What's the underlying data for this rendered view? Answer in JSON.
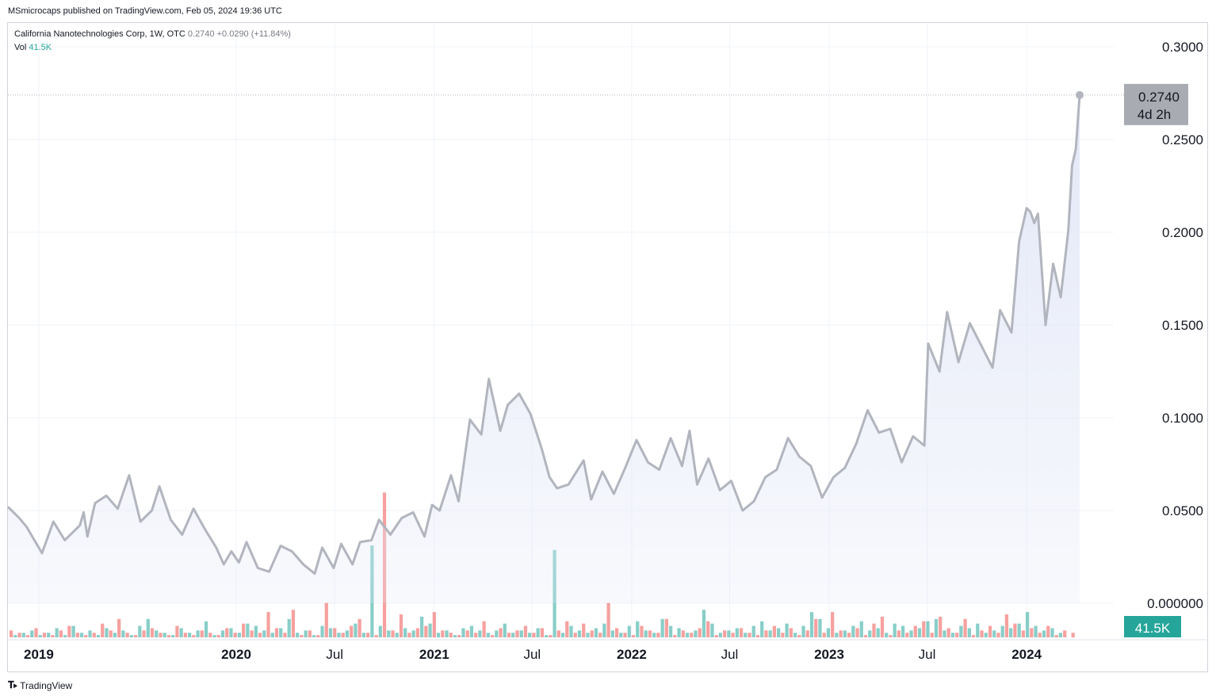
{
  "header": {
    "published": "MSmicrocaps published on TradingView.com, Feb 05, 2024 19:36 UTC"
  },
  "legend": {
    "symbol": "California Nanotechnologies Corp, 1W, OTC",
    "last": "0.2740",
    "change": "+0.0290 (+11.84%)",
    "vol_label": "Vol",
    "vol_value": "41.5K"
  },
  "price_badge": {
    "price": "0.2740",
    "countdown": "4d 2h"
  },
  "volume_badge": "41.5K",
  "footer": {
    "brand": "TradingView",
    "logo": "tradingview-logo"
  },
  "colors": {
    "line": "#b2b5be",
    "fill": "#e3e8f7",
    "vol_up": "#26a69a",
    "vol_down": "#ef5350",
    "badge_gray": "#a9abb3",
    "badge_teal": "#26a69a"
  },
  "chart_data": {
    "type": "area",
    "yaxis_ticks": [
      "0.3000",
      "0.2500",
      "0.2000",
      "0.1500",
      "0.1000",
      "0.0500",
      "0.000000"
    ],
    "x_ticks": [
      "2019",
      "2020",
      "Jul",
      "2021",
      "Jul",
      "2022",
      "Jul",
      "2023",
      "Jul",
      "2024"
    ],
    "ylim": [
      0,
      0.3
    ],
    "grid": true,
    "series": [
      {
        "points": [
          [
            "2018-11-05",
            0.052
          ],
          [
            "2018-11-26",
            0.046
          ],
          [
            "2018-12-10",
            0.041
          ],
          [
            "2019-01-07",
            0.027
          ],
          [
            "2019-01-28",
            0.044
          ],
          [
            "2019-02-18",
            0.034
          ],
          [
            "2019-03-18",
            0.042
          ],
          [
            "2019-03-25",
            0.049
          ],
          [
            "2019-04-01",
            0.036
          ],
          [
            "2019-04-15",
            0.054
          ],
          [
            "2019-05-06",
            0.058
          ],
          [
            "2019-05-27",
            0.051
          ],
          [
            "2019-06-17",
            0.069
          ],
          [
            "2019-07-08",
            0.044
          ],
          [
            "2019-07-29",
            0.05
          ],
          [
            "2019-08-12",
            0.063
          ],
          [
            "2019-09-02",
            0.045
          ],
          [
            "2019-09-23",
            0.037
          ],
          [
            "2019-10-14",
            0.051
          ],
          [
            "2019-11-04",
            0.04
          ],
          [
            "2019-11-25",
            0.03
          ],
          [
            "2019-12-09",
            0.021
          ],
          [
            "2019-12-23",
            0.028
          ],
          [
            "2020-01-06",
            0.022
          ],
          [
            "2020-01-20",
            0.033
          ],
          [
            "2020-02-10",
            0.019
          ],
          [
            "2020-03-02",
            0.017
          ],
          [
            "2020-03-23",
            0.031
          ],
          [
            "2020-04-13",
            0.028
          ],
          [
            "2020-05-04",
            0.021
          ],
          [
            "2020-05-25",
            0.016
          ],
          [
            "2020-06-08",
            0.03
          ],
          [
            "2020-06-29",
            0.019
          ],
          [
            "2020-07-13",
            0.032
          ],
          [
            "2020-08-03",
            0.021
          ],
          [
            "2020-08-17",
            0.033
          ],
          [
            "2020-09-07",
            0.034
          ],
          [
            "2020-09-21",
            0.045
          ],
          [
            "2020-10-12",
            0.037
          ],
          [
            "2020-11-02",
            0.046
          ],
          [
            "2020-11-23",
            0.049
          ],
          [
            "2020-12-14",
            0.036
          ],
          [
            "2020-12-28",
            0.053
          ],
          [
            "2021-01-11",
            0.05
          ],
          [
            "2021-02-01",
            0.069
          ],
          [
            "2021-02-15",
            0.055
          ],
          [
            "2021-03-08",
            0.099
          ],
          [
            "2021-03-29",
            0.091
          ],
          [
            "2021-04-12",
            0.121
          ],
          [
            "2021-05-03",
            0.093
          ],
          [
            "2021-05-17",
            0.107
          ],
          [
            "2021-06-07",
            0.113
          ],
          [
            "2021-06-28",
            0.102
          ],
          [
            "2021-07-19",
            0.083
          ],
          [
            "2021-08-02",
            0.068
          ],
          [
            "2021-08-16",
            0.062
          ],
          [
            "2021-09-06",
            0.064
          ],
          [
            "2021-10-04",
            0.077
          ],
          [
            "2021-10-18",
            0.056
          ],
          [
            "2021-11-08",
            0.071
          ],
          [
            "2021-11-29",
            0.059
          ],
          [
            "2021-12-20",
            0.073
          ],
          [
            "2022-01-10",
            0.088
          ],
          [
            "2022-01-31",
            0.076
          ],
          [
            "2022-02-21",
            0.072
          ],
          [
            "2022-03-14",
            0.089
          ],
          [
            "2022-04-04",
            0.074
          ],
          [
            "2022-04-18",
            0.093
          ],
          [
            "2022-05-02",
            0.064
          ],
          [
            "2022-05-23",
            0.078
          ],
          [
            "2022-06-13",
            0.061
          ],
          [
            "2022-07-04",
            0.066
          ],
          [
            "2022-07-25",
            0.05
          ],
          [
            "2022-08-15",
            0.055
          ],
          [
            "2022-09-05",
            0.068
          ],
          [
            "2022-09-26",
            0.072
          ],
          [
            "2022-10-17",
            0.089
          ],
          [
            "2022-11-07",
            0.079
          ],
          [
            "2022-11-28",
            0.074
          ],
          [
            "2022-12-19",
            0.057
          ],
          [
            "2023-01-09",
            0.068
          ],
          [
            "2023-01-30",
            0.073
          ],
          [
            "2023-02-20",
            0.086
          ],
          [
            "2023-03-13",
            0.104
          ],
          [
            "2023-04-03",
            0.092
          ],
          [
            "2023-04-24",
            0.094
          ],
          [
            "2023-05-15",
            0.076
          ],
          [
            "2023-06-05",
            0.09
          ],
          [
            "2023-06-26",
            0.085
          ],
          [
            "2023-07-03",
            0.14
          ],
          [
            "2023-07-24",
            0.125
          ],
          [
            "2023-08-07",
            0.157
          ],
          [
            "2023-08-28",
            0.13
          ],
          [
            "2023-09-18",
            0.151
          ],
          [
            "2023-10-09",
            0.139
          ],
          [
            "2023-10-30",
            0.127
          ],
          [
            "2023-11-13",
            0.158
          ],
          [
            "2023-12-04",
            0.146
          ],
          [
            "2023-12-18",
            0.195
          ],
          [
            "2024-01-01",
            0.213
          ],
          [
            "2024-01-08",
            0.211
          ],
          [
            "2024-01-15",
            0.205
          ],
          [
            "2024-01-22",
            0.21
          ],
          [
            "2024-02-05",
            0.15
          ],
          [
            "2024-02-19",
            0.183
          ],
          [
            "2024-03-04",
            0.165
          ],
          [
            "2024-03-18",
            0.201
          ],
          [
            "2024-03-25",
            0.236
          ],
          [
            "2024-04-01",
            0.245
          ],
          [
            "2024-04-08",
            0.274
          ]
        ]
      }
    ],
    "volume_note": "volume bars in thousands",
    "volume_series": [
      {
        "name": "volume_down",
        "color": "#ef5350",
        "values": [
          3,
          2,
          1,
          4,
          2,
          1,
          3,
          5,
          2,
          1,
          2,
          6,
          3,
          8,
          2,
          1,
          3,
          4,
          2,
          1,
          5,
          2,
          1,
          3,
          2,
          1,
          4,
          2,
          6,
          3,
          2,
          11,
          4,
          2,
          12,
          1,
          3,
          1,
          15,
          4,
          2,
          5,
          8,
          2,
          1,
          63,
          3,
          10,
          2,
          4,
          5,
          11,
          3,
          2,
          1,
          3,
          2,
          7,
          1,
          4,
          2,
          3,
          5,
          2,
          4,
          1,
          3,
          7,
          2,
          6,
          3,
          2,
          15,
          4,
          2,
          1,
          5,
          3,
          2,
          8,
          1,
          3,
          2,
          4,
          7,
          1,
          3,
          2,
          4,
          2,
          1,
          3,
          5,
          2,
          4,
          1,
          3,
          8,
          2,
          11,
          3,
          2,
          4,
          1,
          6,
          9,
          1,
          3,
          2,
          5,
          7,
          2,
          9,
          4,
          2,
          8,
          1,
          3,
          5,
          2,
          10,
          6,
          3,
          4,
          2,
          5,
          1,
          3,
          2
        ]
      },
      {
        "name": "volume_up",
        "color": "#26a69a",
        "values": [
          1,
          2,
          3,
          1,
          2,
          4,
          1,
          5,
          2,
          3,
          1,
          4,
          2,
          3,
          1,
          5,
          8,
          3,
          2,
          1,
          4,
          2,
          3,
          7,
          1,
          3,
          4,
          2,
          6,
          5,
          3,
          2,
          4,
          8,
          2,
          3,
          1,
          5,
          4,
          2,
          3,
          6,
          2,
          40,
          5,
          3,
          2,
          4,
          3,
          9,
          6,
          2,
          3,
          1,
          4,
          5,
          3,
          2,
          3,
          6,
          2,
          3,
          2,
          4,
          1,
          38,
          2,
          5,
          3,
          2,
          4,
          6,
          3,
          2,
          5,
          7,
          3,
          2,
          8,
          5,
          4,
          2,
          3,
          12,
          6,
          2,
          3,
          4,
          2,
          5,
          7,
          3,
          4,
          6,
          2,
          5,
          11,
          8,
          4,
          2,
          3,
          5,
          7,
          3,
          4,
          2,
          6,
          5,
          3,
          4,
          7,
          8,
          3,
          2,
          5,
          4,
          6,
          2,
          3,
          5,
          4,
          6,
          11,
          5,
          3,
          4,
          2
        ]
      }
    ]
  }
}
